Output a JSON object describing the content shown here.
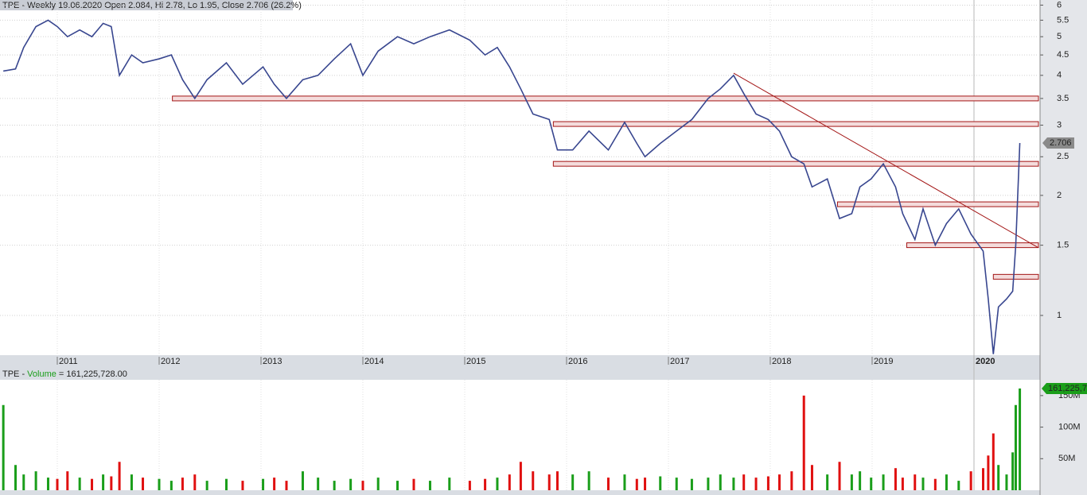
{
  "chart_data": [
    {
      "type": "line",
      "header": "TPE - Weekly 19.06.2020 Open 2.084, Hi 2.78, Lo 1.95, Close 2.706 (26.2%)",
      "log_scale": true,
      "grid": true,
      "xlim": [
        2010.4375,
        2020.633
      ],
      "xticks": [
        2011,
        2012,
        2013,
        2014,
        2015,
        2016,
        2017,
        2018,
        2019,
        2020
      ],
      "ylim": [
        0.795,
        6.18
      ],
      "yticks": [
        1.0,
        1.5,
        2.0,
        2.5,
        3.0,
        3.5,
        4.0,
        4.5,
        5.0,
        5.5,
        6.0
      ],
      "series": [
        {
          "name": "TPE",
          "color": "#38468f",
          "x": [
            2010.47,
            2010.59,
            2010.67,
            2010.79,
            2010.91,
            2011.0,
            2011.1,
            2011.22,
            2011.34,
            2011.45,
            2011.53,
            2011.61,
            2011.73,
            2011.84,
            2012.0,
            2012.12,
            2012.23,
            2012.35,
            2012.47,
            2012.66,
            2012.82,
            2013.02,
            2013.13,
            2013.25,
            2013.41,
            2013.56,
            2013.72,
            2013.88,
            2014.0,
            2014.15,
            2014.34,
            2014.5,
            2014.66,
            2014.85,
            2015.05,
            2015.2,
            2015.32,
            2015.44,
            2015.55,
            2015.67,
            2015.83,
            2015.91,
            2016.06,
            2016.22,
            2016.41,
            2016.57,
            2016.69,
            2016.77,
            2016.92,
            2017.08,
            2017.23,
            2017.39,
            2017.51,
            2017.64,
            2017.74,
            2017.86,
            2017.98,
            2018.09,
            2018.21,
            2018.33,
            2018.41,
            2018.56,
            2018.68,
            2018.8,
            2018.88,
            2018.99,
            2019.11,
            2019.23,
            2019.3,
            2019.42,
            2019.5,
            2019.62,
            2019.73,
            2019.85,
            2019.97,
            2020.09,
            2020.14,
            2020.19,
            2020.24,
            2020.32,
            2020.38,
            2020.41,
            2020.45
          ],
          "values": [
            4.1,
            4.15,
            4.7,
            5.3,
            5.5,
            5.3,
            5.0,
            5.2,
            5.0,
            5.4,
            5.3,
            4.0,
            4.5,
            4.3,
            4.4,
            4.5,
            3.9,
            3.5,
            3.9,
            4.3,
            3.8,
            4.2,
            3.8,
            3.5,
            3.9,
            4.0,
            4.4,
            4.8,
            4.0,
            4.6,
            5.0,
            4.8,
            5.0,
            5.2,
            4.9,
            4.5,
            4.7,
            4.2,
            3.7,
            3.2,
            3.1,
            2.6,
            2.6,
            2.9,
            2.6,
            3.05,
            2.7,
            2.5,
            2.7,
            2.9,
            3.1,
            3.5,
            3.7,
            4.0,
            3.6,
            3.2,
            3.1,
            2.9,
            2.5,
            2.4,
            2.1,
            2.2,
            1.75,
            1.8,
            2.1,
            2.2,
            2.4,
            2.1,
            1.8,
            1.55,
            1.85,
            1.5,
            1.7,
            1.85,
            1.6,
            1.45,
            1.1,
            0.8,
            1.05,
            1.1,
            1.15,
            1.5,
            2.706
          ]
        }
      ],
      "levels": [
        {
          "value": 3.5,
          "from": 2012.13
        },
        {
          "value": 3.02,
          "from": 2015.87
        },
        {
          "value": 2.4,
          "from": 2015.87
        },
        {
          "value": 1.9,
          "from": 2018.66
        },
        {
          "value": 1.5,
          "from": 2019.34
        },
        {
          "value": 1.25,
          "from": 2020.19
        }
      ],
      "level_color": "#a31515",
      "trendline": {
        "x": [
          2017.64,
          2020.63
        ],
        "y": [
          4.05,
          1.48
        ],
        "color": "#a31515"
      }
    },
    {
      "type": "bar",
      "header": [
        "TPE - ",
        "Volume",
        " = 161,225,728.00"
      ],
      "ylim": [
        0,
        175000000
      ],
      "yticks": [
        {
          "value": 50000000,
          "label": "50M"
        },
        {
          "value": 100000000,
          "label": "100M"
        },
        {
          "value": 150000000,
          "label": "150M"
        }
      ],
      "up_color": "#1a9e1a",
      "down_color": "#e01010",
      "values": [
        135000000,
        40000000,
        25000000,
        30000000,
        20000000,
        18000000,
        30000000,
        20000000,
        18000000,
        25000000,
        22000000,
        45000000,
        25000000,
        20000000,
        18000000,
        15000000,
        20000000,
        25000000,
        15000000,
        18000000,
        15000000,
        18000000,
        20000000,
        15000000,
        30000000,
        20000000,
        15000000,
        18000000,
        15000000,
        20000000,
        15000000,
        18000000,
        15000000,
        20000000,
        15000000,
        18000000,
        20000000,
        25000000,
        45000000,
        30000000,
        25000000,
        30000000,
        25000000,
        30000000,
        20000000,
        25000000,
        18000000,
        20000000,
        22000000,
        20000000,
        18000000,
        20000000,
        25000000,
        20000000,
        25000000,
        20000000,
        22000000,
        25000000,
        30000000,
        150000000,
        40000000,
        25000000,
        45000000,
        25000000,
        30000000,
        20000000,
        25000000,
        35000000,
        20000000,
        25000000,
        20000000,
        18000000,
        25000000,
        15000000,
        30000000,
        35000000,
        55000000,
        90000000,
        40000000,
        25000000,
        60000000,
        135000000,
        161225728
      ],
      "last_label": "161,225,728"
    }
  ]
}
